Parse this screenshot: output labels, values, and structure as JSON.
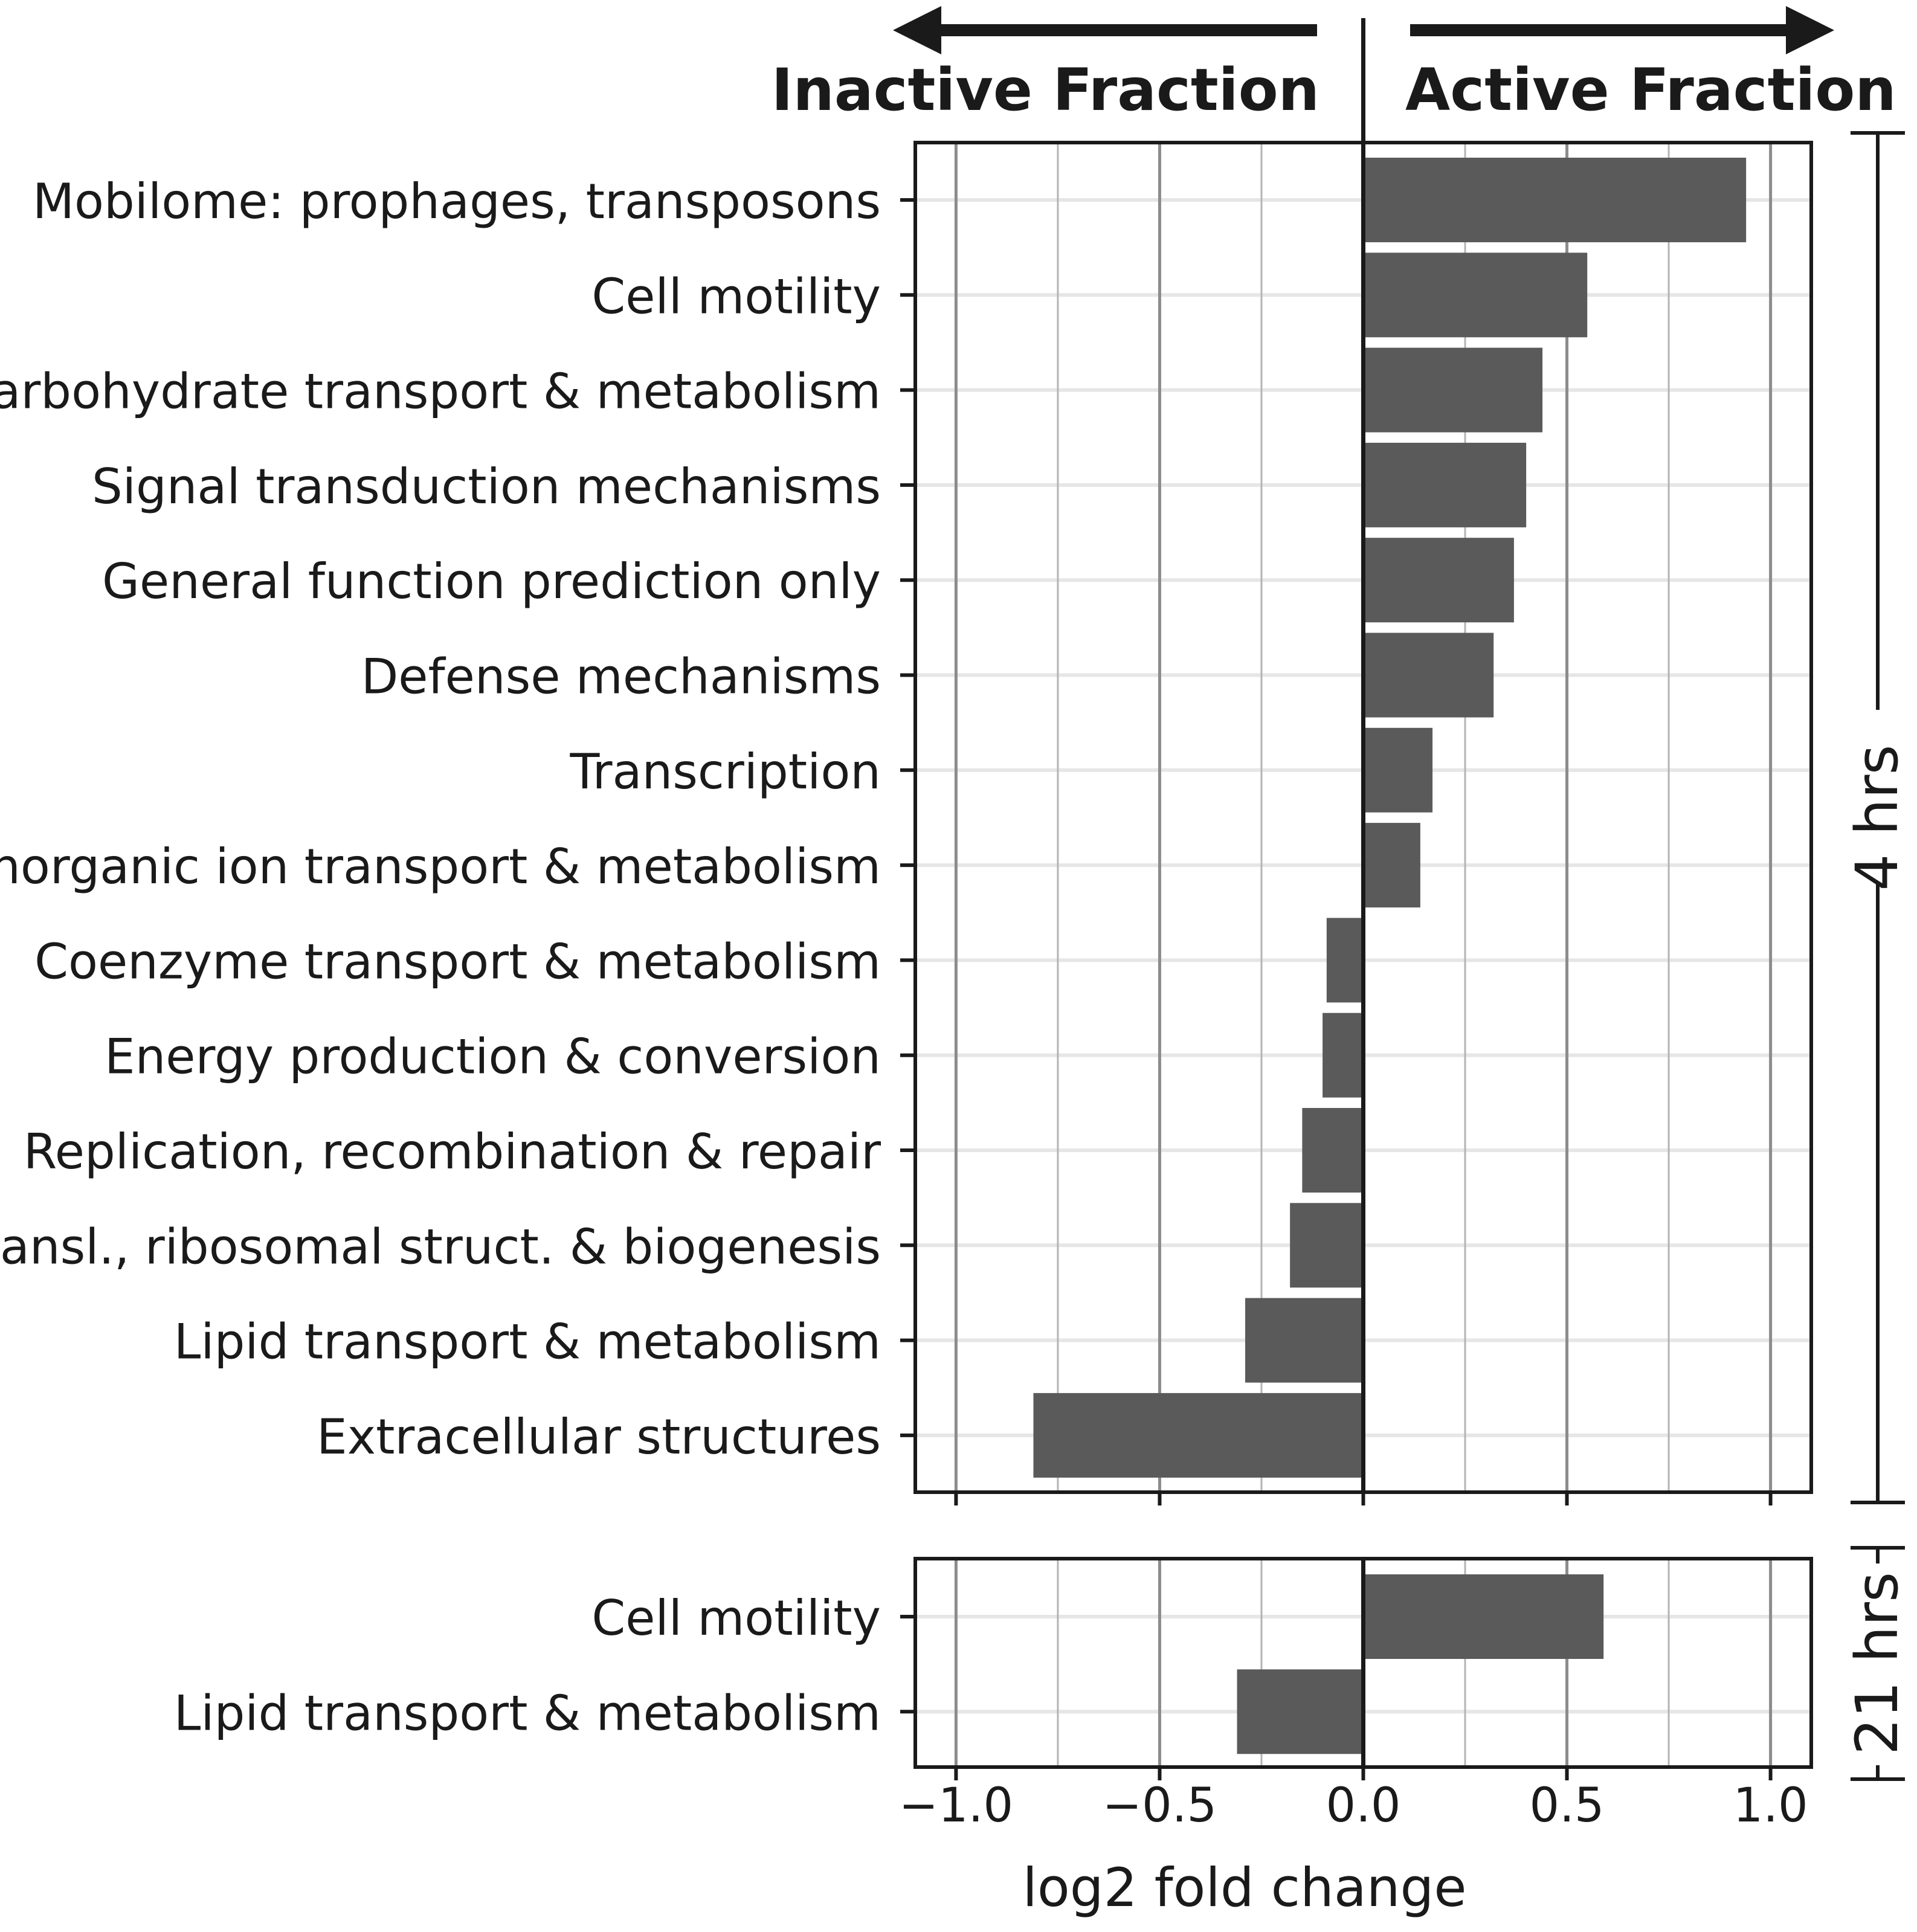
{
  "chart_data": {
    "type": "bar",
    "orientation": "horizontal",
    "colors": {
      "bar": "#5a5a5a",
      "grid_major": "#8c8c8c",
      "grid_minor": "#b4b4b4",
      "row_line": "#e6e6e6",
      "axis": "#1a1a1a"
    },
    "xlabel": "log2 fold change",
    "xlim": [
      -1.1,
      1.1
    ],
    "xticks": [
      -1.0,
      -0.5,
      0.0,
      0.5,
      1.0
    ],
    "xtick_labels": [
      "−1.0",
      "−0.5",
      "0.0",
      "0.5",
      "1.0"
    ],
    "grid": true,
    "annotations": {
      "left_arrow_label": "Inactive Fraction",
      "right_arrow_label": "Active Fraction"
    },
    "panels": [
      {
        "label": "4 hrs",
        "categories": [
          "Mobilome: prophages, transposons",
          "Cell motility",
          "Carbohydrate transport & metabolism",
          "Signal transduction mechanisms",
          "General function prediction only",
          "Defense mechanisms",
          "Transcription",
          "Inorganic ion transport & metabolism",
          "Coenzyme transport & metabolism",
          "Energy production & conversion",
          "Replication, recombination & repair",
          "Transl., ribosomal struct. & biogenesis",
          "Lipid transport & metabolism",
          "Extracellular structures"
        ],
        "values": [
          0.94,
          0.55,
          0.44,
          0.4,
          0.37,
          0.32,
          0.17,
          0.14,
          -0.09,
          -0.1,
          -0.15,
          -0.18,
          -0.29,
          -0.81
        ]
      },
      {
        "label": "21 hrs",
        "categories": [
          "Cell motility",
          "Lipid transport & metabolism"
        ],
        "values": [
          0.59,
          -0.31
        ]
      }
    ]
  }
}
